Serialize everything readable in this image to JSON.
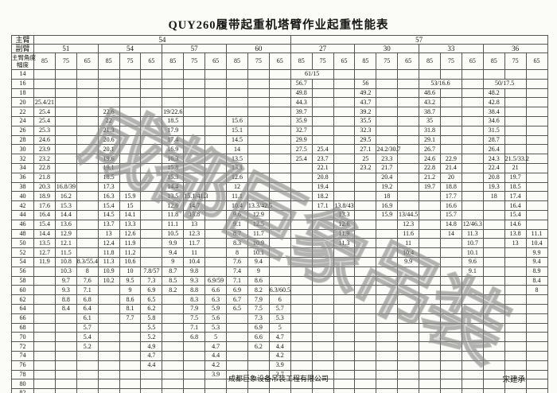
{
  "title": "QUY260履带起重机塔臂作业起重性能表",
  "watermark": {
    "text": "成都巨象吊装"
  },
  "footer": {
    "company": "成都巨象设备吊装工程有限公司",
    "signature": "宋建承"
  },
  "table": {
    "corner_row1": "主臂",
    "corner_row2": "副臂",
    "corner_angle": "主臂角度",
    "corner_radius": "幅度",
    "main_boom": [
      {
        "label": "54",
        "span": 12
      },
      {
        "label": "57",
        "span": 12
      }
    ],
    "jibs": [
      "51",
      "54",
      "57",
      "60",
      "27",
      "30",
      "33",
      "36"
    ],
    "angles": [
      "85",
      "75",
      "65"
    ],
    "merges": {
      "14": [
        [
          13,
          2
        ]
      ],
      "16": [
        [
          19,
          2
        ],
        [
          22,
          2
        ]
      ]
    },
    "rows": [
      [
        "14",
        "",
        "",
        "",
        "",
        "",
        "",
        "",
        "",
        "",
        "",
        "",
        "",
        "61/15"
      ],
      [
        "16",
        "",
        "",
        "",
        "",
        "",
        "",
        "",
        "",
        "",
        "",
        "",
        "",
        "56.7",
        "",
        "",
        "56",
        "",
        "",
        "53/16.6",
        "",
        "",
        "50/17.5"
      ],
      [
        "18",
        "",
        "",
        "",
        "",
        "",
        "",
        "",
        "",
        "",
        "",
        "",
        "",
        "49.8",
        "",
        "",
        "49.2",
        "",
        "",
        "48.6",
        "",
        "",
        "48.2"
      ],
      [
        "20",
        "25.4/21",
        "",
        "",
        "",
        "",
        "",
        "",
        "",
        "",
        "",
        "",
        "",
        "44.3",
        "",
        "",
        "43.7",
        "",
        "",
        "43.2",
        "",
        "",
        "42.8"
      ],
      [
        "22",
        "25.4",
        "",
        "",
        "22.6",
        "",
        "",
        "19/22.6",
        "",
        "",
        "",
        "",
        "",
        "39.7",
        "",
        "",
        "39.2",
        "",
        "",
        "38.7",
        "",
        "",
        "38.4"
      ],
      [
        "24",
        "25.4",
        "",
        "",
        "22",
        "",
        "",
        "18.5",
        "",
        "",
        "15.6",
        "",
        "",
        "35.9",
        "",
        "",
        "35.5",
        "",
        "",
        "35",
        "",
        "",
        "34.6"
      ],
      [
        "26",
        "25.3",
        "",
        "",
        "21.3",
        "",
        "",
        "17.9",
        "",
        "",
        "15.1",
        "",
        "",
        "32.7",
        "",
        "",
        "32.3",
        "",
        "",
        "31.8",
        "",
        "",
        "31.5"
      ],
      [
        "28",
        "24.6",
        "",
        "",
        "20.6",
        "",
        "",
        "17.4",
        "",
        "",
        "14.5",
        "",
        "",
        "29.9",
        "",
        "",
        "29.5",
        "",
        "",
        "29.1",
        "",
        "",
        "28.7"
      ],
      [
        "30",
        "23.9",
        "",
        "",
        "20.1",
        "",
        "",
        "16.9",
        "",
        "",
        "14",
        "",
        "",
        "27.5",
        "25.4",
        "",
        "27.1",
        "24.2/30.7",
        "",
        "26.7",
        "",
        "",
        "26.4"
      ],
      [
        "32",
        "23.2",
        "",
        "",
        "19.6",
        "",
        "",
        "16.3",
        "",
        "",
        "13.5",
        "",
        "",
        "25.4",
        "23.7",
        "",
        "25",
        "23.3",
        "",
        "24.6",
        "22.9",
        "",
        "24.3",
        "21.5/33.2"
      ],
      [
        "34",
        "22.8",
        "",
        "",
        "19.1",
        "",
        "",
        "15.8",
        "",
        "",
        "13.1",
        "",
        "",
        "",
        "22.1",
        "",
        "23.2",
        "21.7",
        "",
        "22.8",
        "21.4",
        "",
        "22.4",
        "21"
      ],
      [
        "36",
        "21.8",
        "",
        "",
        "18.5",
        "",
        "",
        "15.3",
        "",
        "",
        "12.6",
        "",
        "",
        "",
        "20.8",
        "",
        "",
        "20.4",
        "",
        "21.2",
        "20",
        "",
        "20.8",
        "19.7"
      ],
      [
        "38",
        "20.3",
        "16.8/39",
        "",
        "17.3",
        "",
        "",
        "14.4",
        "",
        "",
        "12",
        "",
        "",
        "",
        "19.4",
        "",
        "",
        "19.2",
        "",
        "19.7",
        "18.8",
        "",
        "19.3",
        "18.5"
      ],
      [
        "40",
        "18.9",
        "16.2",
        "",
        "16.3",
        "15.9",
        "",
        "13.5",
        "15.1/41.3",
        "",
        "11.1",
        "",
        "",
        "",
        "18.2",
        "",
        "",
        "18",
        "",
        "",
        "17.7",
        "",
        "18",
        "17.4"
      ],
      [
        "42",
        "17.6",
        "15.3",
        "",
        "15.4",
        "15",
        "",
        "12.6",
        "14.7",
        "",
        "10.4",
        "13.3/42.5",
        "",
        "",
        "17.1",
        "13.8/43",
        "",
        "16.9",
        "",
        "",
        "16.6",
        "",
        "",
        "16.4"
      ],
      [
        "44",
        "16.4",
        "14.4",
        "",
        "14.5",
        "14.1",
        "",
        "11.8",
        "13.8",
        "",
        "9.6",
        "12.9",
        "",
        "",
        "",
        "13.3",
        "",
        "15.9",
        "13/44.5",
        "",
        "15.7",
        "",
        "",
        "15.4"
      ],
      [
        "46",
        "15.4",
        "13.6",
        "",
        "13.7",
        "13.3",
        "",
        "11.1",
        "13",
        "",
        "9.1",
        "12.5",
        "",
        "",
        "",
        "12.6",
        "",
        "",
        "12.3",
        "",
        "14.8",
        "12/46.3",
        "",
        "14.6"
      ],
      [
        "48",
        "14.4",
        "12.9",
        "",
        "13",
        "12.6",
        "",
        "10.5",
        "12.3",
        "",
        "8.7",
        "11.7",
        "",
        "",
        "",
        "11.9",
        "",
        "",
        "11.6",
        "",
        "14",
        "11.3",
        "",
        "13.8",
        "11.1"
      ],
      [
        "50",
        "13.5",
        "12.1",
        "",
        "12.4",
        "11.9",
        "",
        "9.9",
        "11.7",
        "",
        "8.3",
        "10.9",
        "",
        "",
        "",
        "11.3",
        "",
        "",
        "11",
        "",
        "",
        "10.7",
        "",
        "13",
        "10.4"
      ],
      [
        "52",
        "12.7",
        "11.5",
        "",
        "11.8",
        "11.2",
        "",
        "9.4",
        "11",
        "",
        "8",
        "10.1",
        "",
        "",
        "",
        "",
        "",
        "",
        "10.4",
        "",
        "",
        "10.1",
        "",
        "",
        "9.9"
      ],
      [
        "54",
        "11.9",
        "10.8",
        "8.3/55.4",
        "11.3",
        "10.6",
        "",
        "9",
        "10.4",
        "",
        "7.6",
        "9.4",
        "",
        "",
        "",
        "",
        "",
        "",
        "9.9",
        "",
        "",
        "9.6",
        "",
        "",
        "9.4"
      ],
      [
        "56",
        "",
        "10.3",
        "8",
        "10.9",
        "10",
        "7.8/57",
        "8.7",
        "9.8",
        "",
        "7.4",
        "9",
        "",
        "",
        "",
        "",
        "",
        "",
        "",
        "",
        "",
        "9.1",
        "",
        "",
        "8.9"
      ],
      [
        "58",
        "",
        "9.7",
        "7.6",
        "10.2",
        "9.5",
        "7.3",
        "8.5",
        "9.3",
        "6.9/59",
        "7.1",
        "8.6",
        "",
        "",
        "",
        "",
        "",
        "",
        "",
        "",
        "",
        "",
        "",
        "",
        "8.4"
      ],
      [
        "60",
        "",
        "9.3",
        "7.1",
        "",
        "9",
        "6.9",
        "8.2",
        "8.8",
        "6.6",
        "6.9",
        "8.2",
        "6.3/60.5",
        "",
        "",
        "",
        "",
        "",
        "",
        "",
        "",
        "",
        "",
        "",
        "8"
      ],
      [
        "62",
        "",
        "8.8",
        "6.8",
        "",
        "8.6",
        "6.5",
        "",
        "8.3",
        "6.3",
        "6.7",
        "7.9",
        "6"
      ],
      [
        "64",
        "",
        "8.4",
        "6.4",
        "",
        "8.1",
        "6.2",
        "",
        "7.9",
        "5.9",
        "6.5",
        "7.5",
        "5.7"
      ],
      [
        "66",
        "",
        "",
        "6.1",
        "",
        "7.7",
        "5.8",
        "",
        "7.5",
        "5.6",
        "",
        "7.3",
        "5.3"
      ],
      [
        "68",
        "",
        "",
        "5.7",
        "",
        "",
        "5.5",
        "",
        "7.1",
        "5.3",
        "",
        "6.9",
        "5"
      ],
      [
        "70",
        "",
        "",
        "5.4",
        "",
        "",
        "5.2",
        "",
        "6.8",
        "5",
        "",
        "6.6",
        "4.7"
      ],
      [
        "72",
        "",
        "",
        "5.2",
        "",
        "",
        "4.9",
        "",
        "",
        "4.7",
        "",
        "6.2",
        "4.4"
      ],
      [
        "74",
        "",
        "",
        "",
        "",
        "",
        "4.7",
        "",
        "",
        "4.4",
        "",
        "",
        "4.2"
      ],
      [
        "76",
        "",
        "",
        "",
        "",
        "",
        "4.4",
        "",
        "",
        "4.2",
        "",
        "",
        "3.9"
      ],
      [
        "78",
        "",
        "",
        "",
        "",
        "",
        "",
        "",
        "",
        "3.9",
        "",
        "",
        "3.7"
      ],
      [
        "80"
      ],
      [
        "82"
      ]
    ]
  }
}
